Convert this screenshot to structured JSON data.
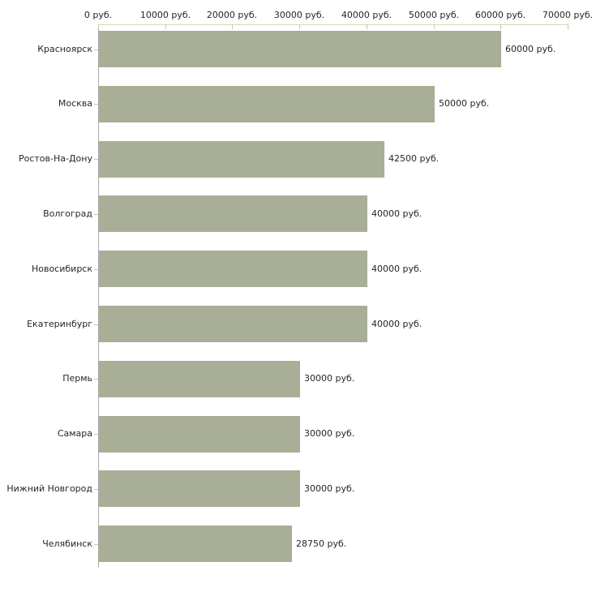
{
  "chart_data": {
    "type": "bar",
    "orientation": "horizontal",
    "title": "",
    "xlabel": "",
    "ylabel": "",
    "unit": "руб.",
    "xlim": [
      0,
      70000
    ],
    "grid": false,
    "legend": null,
    "x_ticks": [
      {
        "value": 0,
        "label": "0 руб."
      },
      {
        "value": 10000,
        "label": "10000 руб."
      },
      {
        "value": 20000,
        "label": "20000 руб."
      },
      {
        "value": 30000,
        "label": "30000 руб."
      },
      {
        "value": 40000,
        "label": "40000 руб."
      },
      {
        "value": 50000,
        "label": "50000 руб."
      },
      {
        "value": 60000,
        "label": "60000 руб."
      },
      {
        "value": 70000,
        "label": "70000 руб."
      }
    ],
    "categories": [
      "Красноярск",
      "Москва",
      "Ростов-На-Дону",
      "Волгоград",
      "Новосибирск",
      "Екатеринбург",
      "Пермь",
      "Самара",
      "Нижний Новгород",
      "Челябинск"
    ],
    "values": [
      60000,
      50000,
      42500,
      40000,
      40000,
      40000,
      30000,
      30000,
      30000,
      28750
    ],
    "value_labels": [
      "60000 руб.",
      "50000 руб.",
      "42500 руб.",
      "40000 руб.",
      "40000 руб.",
      "40000 руб.",
      "30000 руб.",
      "30000 руб.",
      "30000 руб.",
      "28750 руб."
    ],
    "colors": {
      "bar": "#a9ae97",
      "x_axis_line": "#d3d6b4",
      "tick": "#c3ca9c",
      "y_axis_line": "#a9a9a9",
      "text": "#262626",
      "background": "#ffffff"
    }
  }
}
